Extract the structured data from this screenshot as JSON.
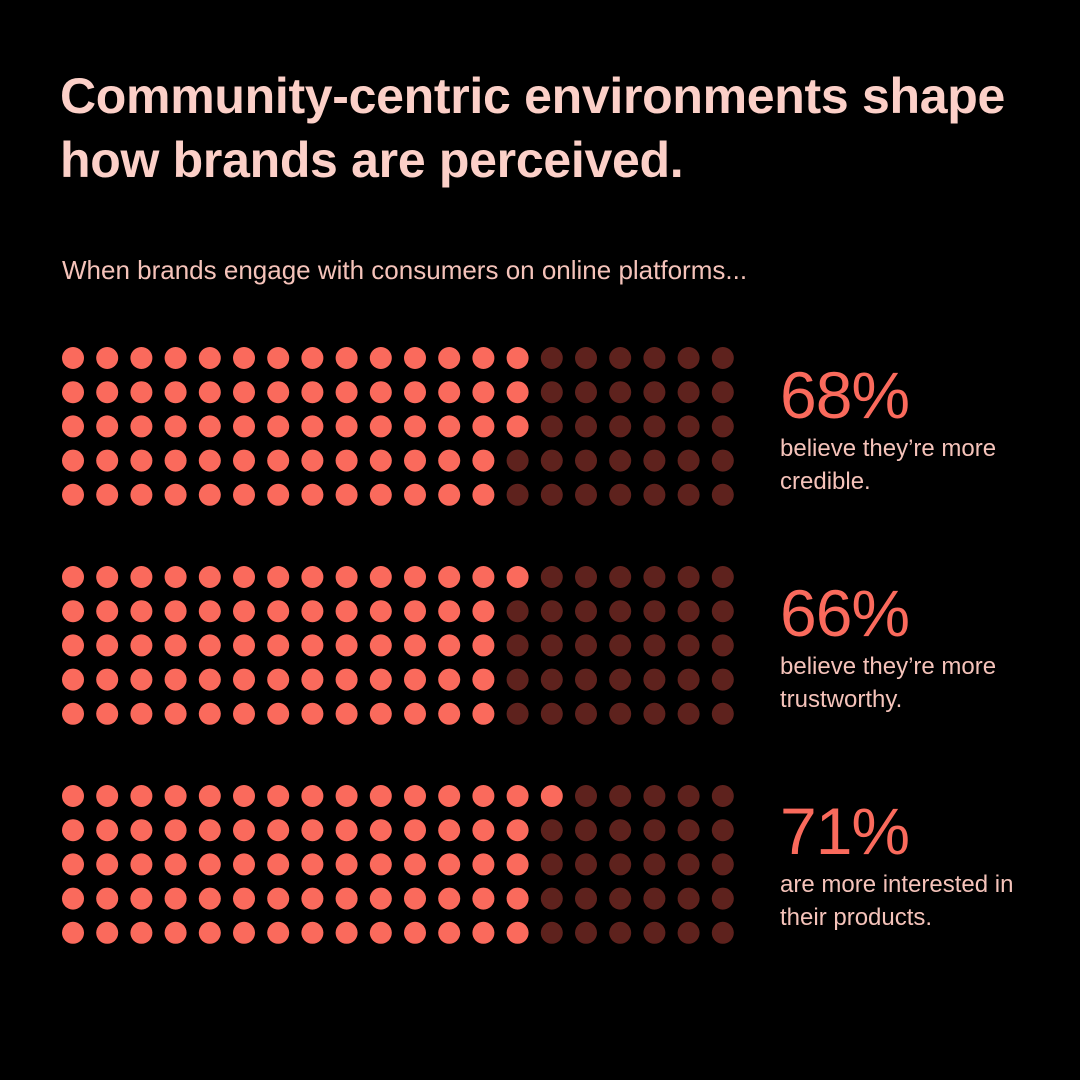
{
  "header": {
    "title": "Community-centric environments shape how brands are perceived.",
    "subtitle": "When brands engage with consumers on online platforms..."
  },
  "colors": {
    "background": "#000000",
    "filled_dot": "#fa6a5c",
    "empty_dot": "#5e221d",
    "title": "#fcd0c8",
    "body_text": "#f5c3ba",
    "stat_value": "#fa6a5c"
  },
  "chart_data": {
    "type": "waffle",
    "grid": {
      "rows": 5,
      "cols": 20,
      "total": 100,
      "fill_order": "column-major"
    },
    "series": [
      {
        "value": 68,
        "value_label": "68%",
        "description": "believe they’re more credible."
      },
      {
        "value": 66,
        "value_label": "66%",
        "description": "believe they’re more trustworthy."
      },
      {
        "value": 71,
        "value_label": "71%",
        "description": "are more interested in their products."
      }
    ]
  }
}
